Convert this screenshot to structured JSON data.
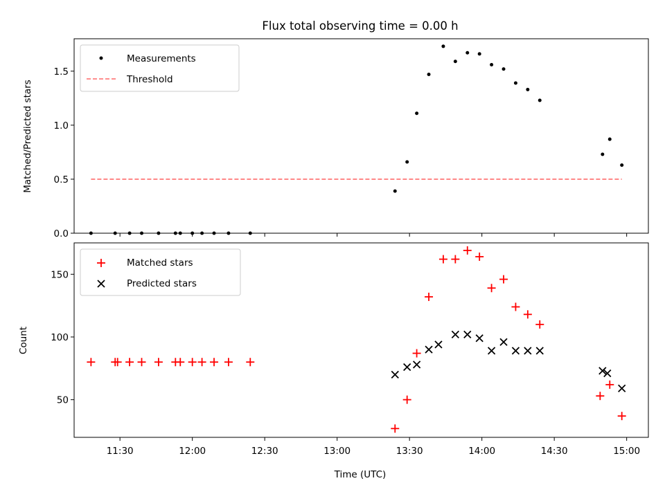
{
  "chart_data": [
    {
      "type": "scatter",
      "title": "Flux total observing time = 0.00 h",
      "xlabel": "",
      "ylabel": "Matched/Predicted stars",
      "ylim": [
        0,
        1.8
      ],
      "yticks": [
        "0.0",
        "0.5",
        "1.0",
        "1.5"
      ],
      "xticks_shown": false,
      "legend_position": "top-left",
      "series": [
        {
          "name": "Measurements",
          "kind": "scatter",
          "marker": "dot",
          "color": "#000000",
          "x": [
            "11:18",
            "11:28",
            "11:34",
            "11:39",
            "11:46",
            "11:53",
            "11:55",
            "12:00",
            "12:04",
            "12:09",
            "12:15",
            "12:24",
            "13:24",
            "13:29",
            "13:33",
            "13:38",
            "13:44",
            "13:49",
            "13:54",
            "13:59",
            "14:04",
            "14:09",
            "14:14",
            "14:19",
            "14:24",
            "14:50",
            "14:53",
            "14:58"
          ],
          "y": [
            0.0,
            0.0,
            0.0,
            0.0,
            0.0,
            0.0,
            0.0,
            0.0,
            0.0,
            0.0,
            0.0,
            0.0,
            0.39,
            0.66,
            1.11,
            1.47,
            1.73,
            1.59,
            1.67,
            1.66,
            1.56,
            1.52,
            1.39,
            1.33,
            1.23,
            0.73,
            0.87,
            0.63
          ]
        },
        {
          "name": "Threshold",
          "kind": "line",
          "style": "dashed",
          "color": "#ff7f7f",
          "x": [
            "11:18",
            "14:58"
          ],
          "y": [
            0.5,
            0.5
          ]
        }
      ]
    },
    {
      "type": "scatter",
      "title": "",
      "xlabel": "Time (UTC)",
      "ylabel": "Count",
      "ylim": [
        20,
        175
      ],
      "yticks": [
        "50",
        "100",
        "150"
      ],
      "xticks": [
        "11:30",
        "12:00",
        "12:30",
        "13:00",
        "13:30",
        "14:00",
        "14:30",
        "15:00"
      ],
      "xlim": [
        "11:11",
        "15:09"
      ],
      "legend_position": "top-left",
      "series": [
        {
          "name": "Matched stars",
          "kind": "scatter",
          "marker": "plus",
          "color": "#ff0000",
          "x": [
            "11:18",
            "11:28",
            "11:29",
            "11:34",
            "11:39",
            "11:46",
            "11:53",
            "11:55",
            "12:00",
            "12:04",
            "12:09",
            "12:15",
            "12:24",
            "13:24",
            "13:29",
            "13:33",
            "13:38",
            "13:44",
            "13:49",
            "13:54",
            "13:59",
            "14:04",
            "14:09",
            "14:14",
            "14:19",
            "14:24",
            "14:49",
            "14:53",
            "14:58"
          ],
          "y": [
            80,
            80,
            80,
            80,
            80,
            80,
            80,
            80,
            80,
            80,
            80,
            80,
            80,
            27,
            50,
            87,
            132,
            162,
            162,
            169,
            164,
            139,
            146,
            124,
            118,
            110,
            53,
            62,
            37
          ]
        },
        {
          "name": "Predicted stars",
          "kind": "scatter",
          "marker": "x",
          "color": "#000000",
          "x": [
            "13:24",
            "13:29",
            "13:33",
            "13:38",
            "13:42",
            "13:49",
            "13:54",
            "13:59",
            "14:04",
            "14:09",
            "14:14",
            "14:19",
            "14:24",
            "14:50",
            "14:52",
            "14:58"
          ],
          "y": [
            70,
            76,
            78,
            90,
            94,
            102,
            102,
            99,
            89,
            96,
            89,
            89,
            89,
            73,
            71,
            59
          ]
        }
      ]
    }
  ]
}
